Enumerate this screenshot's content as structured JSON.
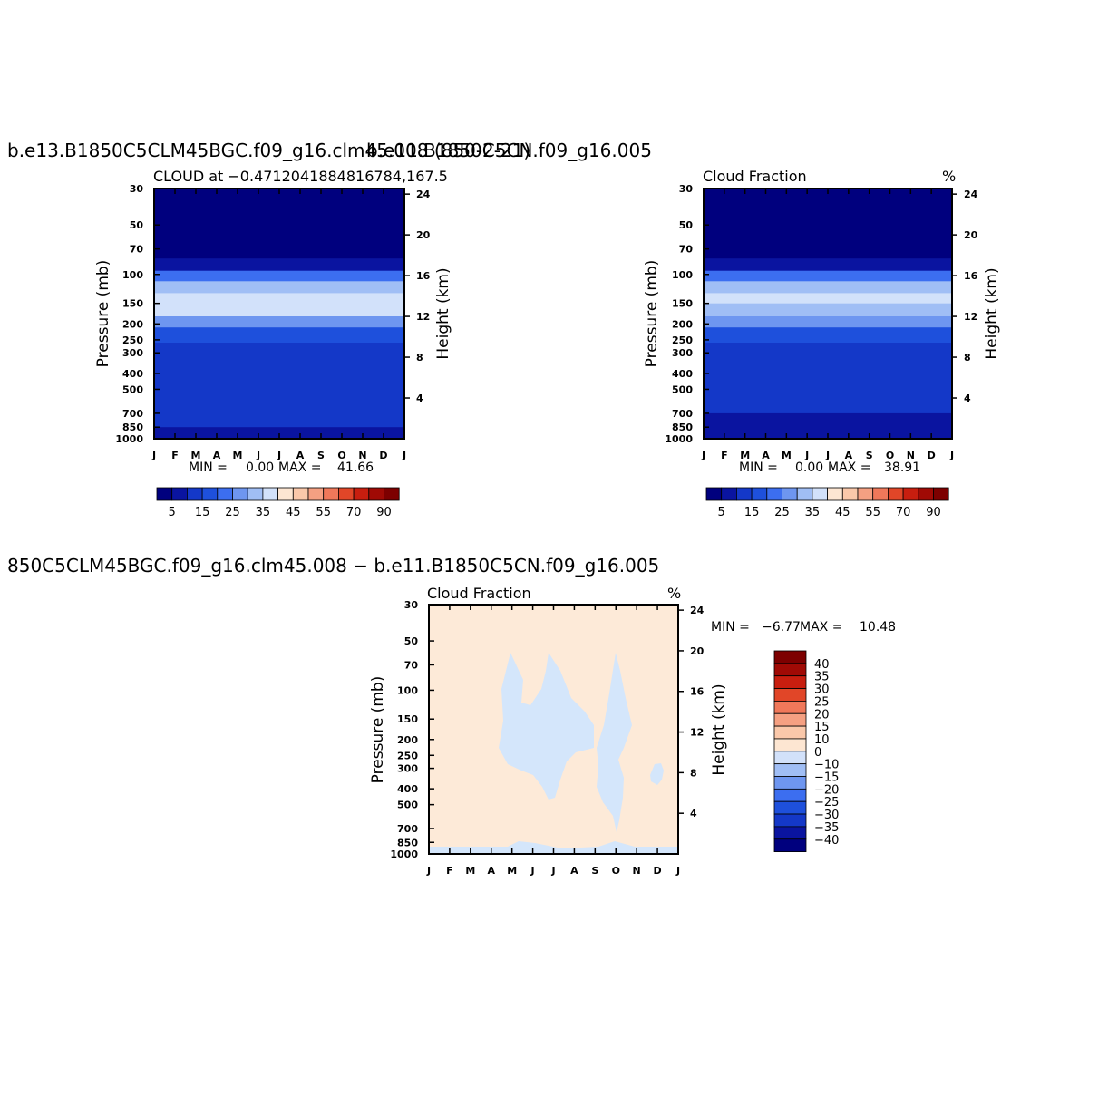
{
  "chart_data": [
    {
      "type": "heatmap",
      "top_title": "b.e13.B1850C5CLM45BGC.f09_g16.clm45.008 (850-2-21)",
      "left_title": "CLOUD at −0.4712041884816784,167.5",
      "right_title": "",
      "xlabel": "",
      "ylabel": "Pressure (mb)",
      "y2label": "Height (km)",
      "x_ticks": [
        "J",
        "F",
        "M",
        "A",
        "M",
        "J",
        "J",
        "A",
        "S",
        "O",
        "N",
        "D",
        "J"
      ],
      "y_ticks": [
        30,
        50,
        70,
        100,
        150,
        200,
        250,
        300,
        400,
        500,
        700,
        850,
        1000
      ],
      "y2_ticks": [
        24,
        20,
        16,
        12,
        8,
        4
      ],
      "ylim": [
        30,
        1000
      ],
      "stats": {
        "min_label": "MIN =",
        "min": "0.00",
        "max_label": "MAX =",
        "max": "41.66"
      },
      "colorbar_labels": [
        "5",
        "15",
        "25",
        "35",
        "45",
        "55",
        "70",
        "90"
      ],
      "profile": [
        {
          "p": 30,
          "v": 0
        },
        {
          "p": 80,
          "v": 0
        },
        {
          "p": 95,
          "v": 10
        },
        {
          "p": 110,
          "v": 22
        },
        {
          "p": 130,
          "v": 32
        },
        {
          "p": 150,
          "v": 36
        },
        {
          "p": 180,
          "v": 28
        },
        {
          "p": 210,
          "v": 18
        },
        {
          "p": 260,
          "v": 9
        },
        {
          "p": 350,
          "v": 5
        },
        {
          "p": 500,
          "v": 10
        },
        {
          "p": 700,
          "v": 6
        },
        {
          "p": 850,
          "v": 6
        },
        {
          "p": 1000,
          "v": 4
        }
      ]
    },
    {
      "type": "heatmap",
      "top_title": "b.e11.B1850C5CN.f09_g16.005",
      "left_title": "Cloud Fraction",
      "right_title": "%",
      "xlabel": "",
      "ylabel": "Pressure (mb)",
      "y2label": "Height (km)",
      "x_ticks": [
        "J",
        "F",
        "M",
        "A",
        "M",
        "J",
        "J",
        "A",
        "S",
        "O",
        "N",
        "D",
        "J"
      ],
      "y_ticks": [
        30,
        50,
        70,
        100,
        150,
        200,
        250,
        300,
        400,
        500,
        700,
        850,
        1000
      ],
      "y2_ticks": [
        24,
        20,
        16,
        12,
        8,
        4
      ],
      "ylim": [
        30,
        1000
      ],
      "stats": {
        "min_label": "MIN =",
        "min": "0.00",
        "max_label": "MAX =",
        "max": "38.91"
      },
      "colorbar_labels": [
        "5",
        "15",
        "25",
        "35",
        "45",
        "55",
        "70",
        "90"
      ],
      "profile": [
        {
          "p": 30,
          "v": 0
        },
        {
          "p": 80,
          "v": 0
        },
        {
          "p": 95,
          "v": 10
        },
        {
          "p": 110,
          "v": 22
        },
        {
          "p": 130,
          "v": 30
        },
        {
          "p": 150,
          "v": 34
        },
        {
          "p": 180,
          "v": 26
        },
        {
          "p": 210,
          "v": 17
        },
        {
          "p": 260,
          "v": 9
        },
        {
          "p": 350,
          "v": 5
        },
        {
          "p": 500,
          "v": 8
        },
        {
          "p": 700,
          "v": 5
        },
        {
          "p": 850,
          "v": 5
        },
        {
          "p": 1000,
          "v": 4
        }
      ]
    },
    {
      "type": "heatmap",
      "top_title": "850C5CLM45BGC.f09_g16.clm45.008 − b.e11.B1850C5CN.f09_g16.005",
      "left_title": "Cloud Fraction",
      "right_title": "%",
      "xlabel": "",
      "ylabel": "Pressure (mb)",
      "y2label": "Height (km)",
      "x_ticks": [
        "J",
        "F",
        "M",
        "A",
        "M",
        "J",
        "J",
        "A",
        "S",
        "O",
        "N",
        "D",
        "J"
      ],
      "y_ticks": [
        30,
        50,
        70,
        100,
        150,
        200,
        250,
        300,
        400,
        500,
        700,
        850,
        1000
      ],
      "y2_ticks": [
        24,
        20,
        16,
        12,
        8,
        4
      ],
      "ylim": [
        30,
        1000
      ],
      "stats": {
        "min_label": "MIN =",
        "min": "−6.77",
        "max_label": "MAX =",
        "max": "10.48"
      },
      "colorbar_labels": [
        "40",
        "35",
        "30",
        "25",
        "20",
        "15",
        "10",
        "0",
        "−10",
        "−15",
        "−20",
        "−25",
        "−30",
        "−35",
        "−40"
      ]
    }
  ],
  "colors": {
    "background": "#ffffff",
    "scale": [
      "#00007e",
      "#0a14a0",
      "#1438c8",
      "#1e50dc",
      "#3c6ef0",
      "#6e96f0",
      "#a0bef5",
      "#d2e1fa",
      "#fde6d2",
      "#fac8aa",
      "#f5a082",
      "#f0785a",
      "#e14628",
      "#c81e0f",
      "#a00a05",
      "#7d0000"
    ],
    "positive_diff": "#fdead8",
    "negative_diff": "#d4e6fb"
  }
}
